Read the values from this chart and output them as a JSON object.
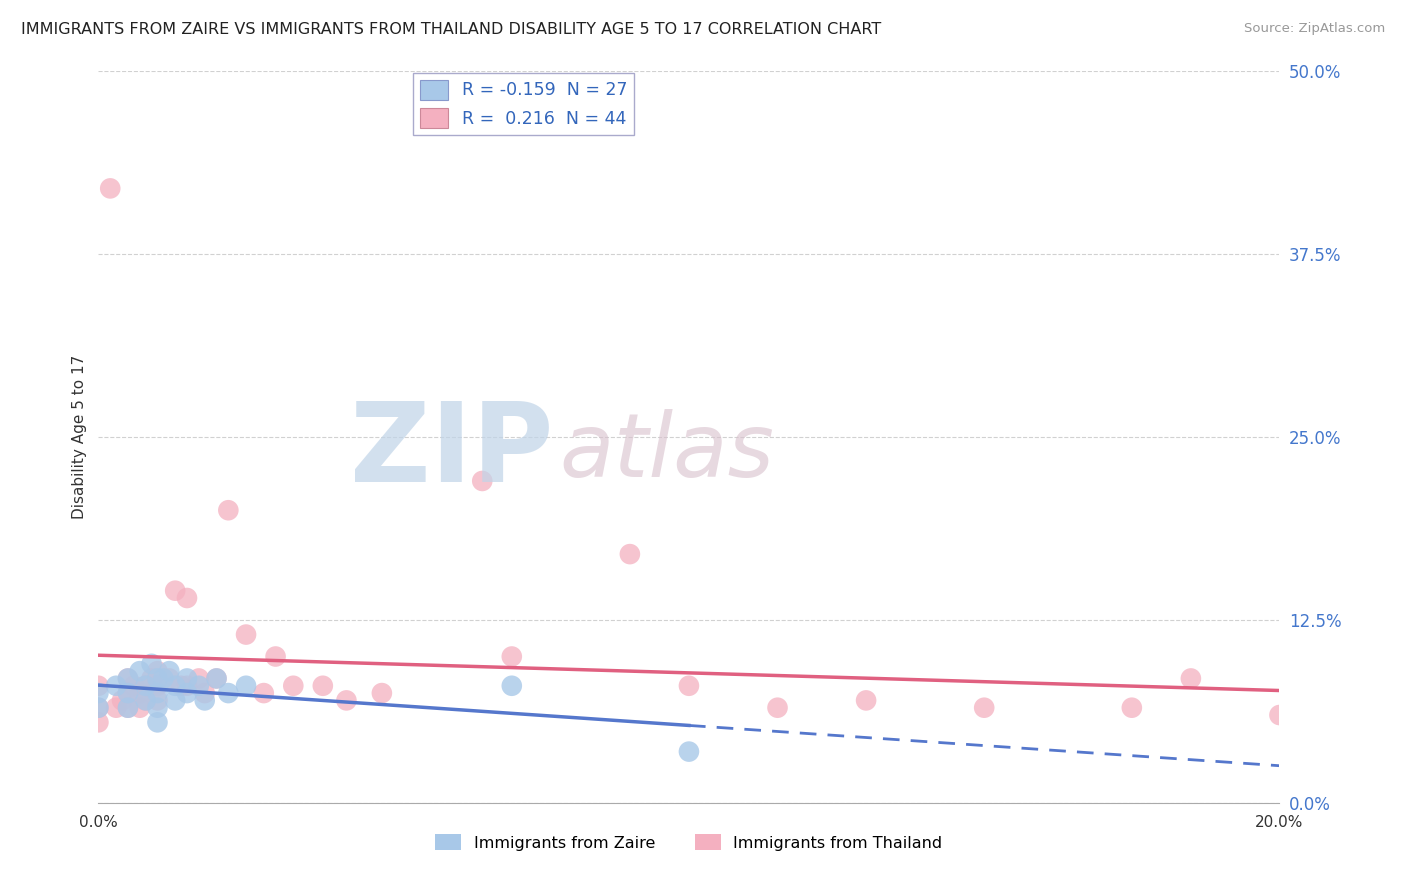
{
  "title": "IMMIGRANTS FROM ZAIRE VS IMMIGRANTS FROM THAILAND DISABILITY AGE 5 TO 17 CORRELATION CHART",
  "source": "Source: ZipAtlas.com",
  "ylabel": "Disability Age 5 to 17",
  "xmin": 0.0,
  "xmax": 0.2,
  "ymin": 0.0,
  "ymax": 0.5,
  "ytick_values": [
    0.0,
    0.125,
    0.25,
    0.375,
    0.5
  ],
  "xtick_positions": [
    0.0,
    0.2
  ],
  "color_zaire": "#a8c8e8",
  "color_thailand": "#f4b0c0",
  "color_zaire_line": "#5577cc",
  "color_thailand_line": "#e06080",
  "background_color": "#ffffff",
  "grid_color": "#cccccc",
  "legend_label1": "Immigrants from Zaire",
  "legend_label2": "Immigrants from Thailand",
  "zaire_R": -0.159,
  "zaire_N": 27,
  "thailand_R": 0.216,
  "thailand_N": 44,
  "zaire_x": [
    0.0,
    0.0,
    0.003,
    0.005,
    0.005,
    0.005,
    0.007,
    0.008,
    0.008,
    0.009,
    0.01,
    0.01,
    0.01,
    0.01,
    0.011,
    0.012,
    0.013,
    0.013,
    0.015,
    0.015,
    0.017,
    0.018,
    0.02,
    0.022,
    0.025,
    0.07,
    0.1
  ],
  "zaire_y": [
    0.075,
    0.065,
    0.08,
    0.085,
    0.075,
    0.065,
    0.09,
    0.08,
    0.07,
    0.095,
    0.085,
    0.075,
    0.065,
    0.055,
    0.085,
    0.09,
    0.08,
    0.07,
    0.085,
    0.075,
    0.08,
    0.07,
    0.085,
    0.075,
    0.08,
    0.08,
    0.035
  ],
  "thailand_x": [
    0.0,
    0.0,
    0.0,
    0.002,
    0.003,
    0.004,
    0.005,
    0.005,
    0.005,
    0.006,
    0.007,
    0.007,
    0.008,
    0.008,
    0.009,
    0.01,
    0.01,
    0.01,
    0.012,
    0.013,
    0.014,
    0.015,
    0.015,
    0.017,
    0.018,
    0.02,
    0.022,
    0.025,
    0.028,
    0.03,
    0.033,
    0.038,
    0.042,
    0.048,
    0.065,
    0.07,
    0.09,
    0.1,
    0.115,
    0.13,
    0.15,
    0.175,
    0.185,
    0.2
  ],
  "thailand_y": [
    0.08,
    0.065,
    0.055,
    0.42,
    0.065,
    0.07,
    0.085,
    0.075,
    0.065,
    0.08,
    0.075,
    0.065,
    0.08,
    0.07,
    0.085,
    0.09,
    0.08,
    0.07,
    0.085,
    0.145,
    0.08,
    0.14,
    0.08,
    0.085,
    0.075,
    0.085,
    0.2,
    0.115,
    0.075,
    0.1,
    0.08,
    0.08,
    0.07,
    0.075,
    0.22,
    0.1,
    0.17,
    0.08,
    0.065,
    0.07,
    0.065,
    0.065,
    0.085,
    0.06
  ]
}
